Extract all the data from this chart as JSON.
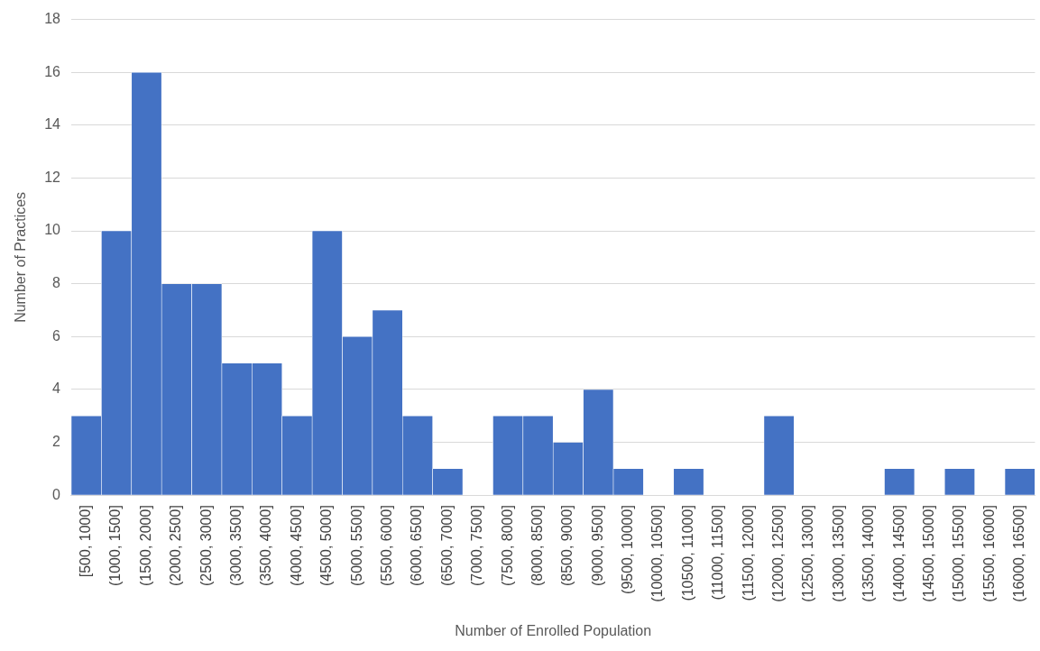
{
  "chart_data": {
    "type": "bar",
    "xlabel": "Number of Enrolled Population",
    "ylabel": "Number of Practices",
    "categories": [
      "[500, 1000]",
      "(1000, 1500]",
      "(1500, 2000]",
      "(2000, 2500]",
      "(2500, 3000]",
      "(3000, 3500]",
      "(3500, 4000]",
      "(4000, 4500]",
      "(4500, 5000]",
      "(5000, 5500]",
      "(5500, 6000]",
      "(6000, 6500]",
      "(6500, 7000]",
      "(7000, 7500]",
      "(7500, 8000]",
      "(8000, 8500]",
      "(8500, 9000]",
      "(9000, 9500]",
      "(9500, 10000]",
      "(10000, 10500]",
      "(10500, 11000]",
      "(11000, 11500]",
      "(11500, 12000]",
      "(12000, 12500]",
      "(12500, 13000]",
      "(13000, 13500]",
      "(13500, 14000]",
      "(14000, 14500]",
      "(14500, 15000]",
      "(15000, 15500]",
      "(15500, 16000]",
      "(16000, 16500]"
    ],
    "values": [
      3,
      10,
      16,
      8,
      8,
      5,
      5,
      3,
      10,
      6,
      7,
      3,
      1,
      0,
      3,
      3,
      2,
      4,
      1,
      0,
      1,
      0,
      0,
      3,
      0,
      0,
      0,
      1,
      0,
      1,
      0,
      1
    ],
    "color": "#4472c4",
    "ylim": [
      0,
      18
    ],
    "yticks": [
      0,
      2,
      4,
      6,
      8,
      10,
      12,
      14,
      16,
      18
    ],
    "grid": "y",
    "legend": false
  }
}
